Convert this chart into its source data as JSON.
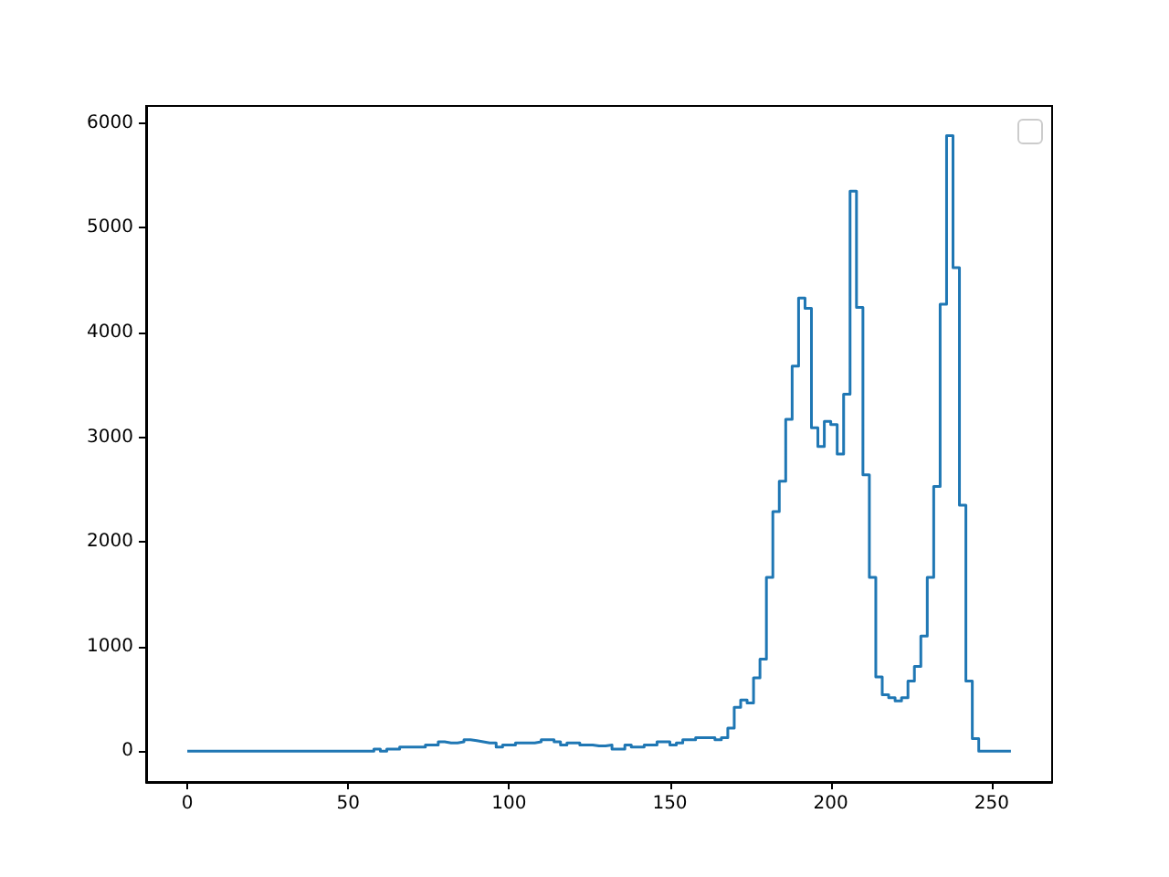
{
  "chart_data": {
    "type": "step",
    "color": "#1f77b4",
    "x": [
      0,
      2,
      4,
      6,
      8,
      10,
      12,
      14,
      16,
      18,
      20,
      22,
      24,
      26,
      28,
      30,
      32,
      34,
      36,
      38,
      40,
      42,
      44,
      46,
      48,
      50,
      52,
      54,
      56,
      58,
      60,
      62,
      64,
      66,
      68,
      70,
      72,
      74,
      76,
      78,
      80,
      82,
      84,
      86,
      88,
      90,
      92,
      94,
      96,
      98,
      100,
      102,
      104,
      106,
      108,
      110,
      112,
      114,
      116,
      118,
      120,
      122,
      124,
      126,
      128,
      130,
      132,
      134,
      136,
      138,
      140,
      142,
      144,
      146,
      148,
      150,
      152,
      154,
      156,
      158,
      160,
      162,
      164,
      166,
      168,
      170,
      172,
      174,
      176,
      178,
      180,
      182,
      184,
      186,
      188,
      190,
      192,
      194,
      196,
      198,
      200,
      202,
      204,
      206,
      208,
      210,
      212,
      214,
      216,
      218,
      220,
      222,
      224,
      226,
      228,
      230,
      232,
      234,
      236,
      238,
      240,
      242,
      244,
      246,
      248,
      250,
      252,
      254,
      256
    ],
    "values": [
      0,
      0,
      0,
      0,
      0,
      0,
      0,
      0,
      0,
      0,
      0,
      0,
      0,
      0,
      0,
      0,
      0,
      0,
      0,
      0,
      0,
      0,
      0,
      0,
      0,
      0,
      0,
      0,
      0,
      20,
      0,
      20,
      20,
      40,
      40,
      40,
      40,
      60,
      60,
      90,
      80,
      80,
      90,
      110,
      100,
      90,
      80,
      80,
      40,
      60,
      60,
      80,
      80,
      80,
      90,
      110,
      110,
      90,
      60,
      80,
      80,
      60,
      60,
      50,
      50,
      60,
      20,
      20,
      60,
      40,
      40,
      60,
      60,
      90,
      90,
      60,
      80,
      110,
      110,
      130,
      130,
      130,
      110,
      130,
      220,
      420,
      490,
      460,
      700,
      880,
      1660,
      2290,
      2580,
      3170,
      3680,
      4330,
      4230,
      3090,
      2910,
      3150,
      3120,
      2840,
      3410,
      5350,
      4240,
      2640,
      1660,
      710,
      540,
      510,
      480,
      510,
      670,
      810,
      1100,
      1660,
      2530,
      4270,
      5880,
      4620,
      2350,
      670,
      120,
      0,
      0,
      0,
      0,
      0,
      0
    ],
    "xlim": [
      -12.8,
      268.8
    ],
    "ylim": [
      -294,
      6164
    ],
    "xticks": [
      0,
      50,
      100,
      150,
      200,
      250
    ],
    "yticks": [
      0,
      1000,
      2000,
      3000,
      4000,
      5000,
      6000
    ],
    "grid": false
  }
}
